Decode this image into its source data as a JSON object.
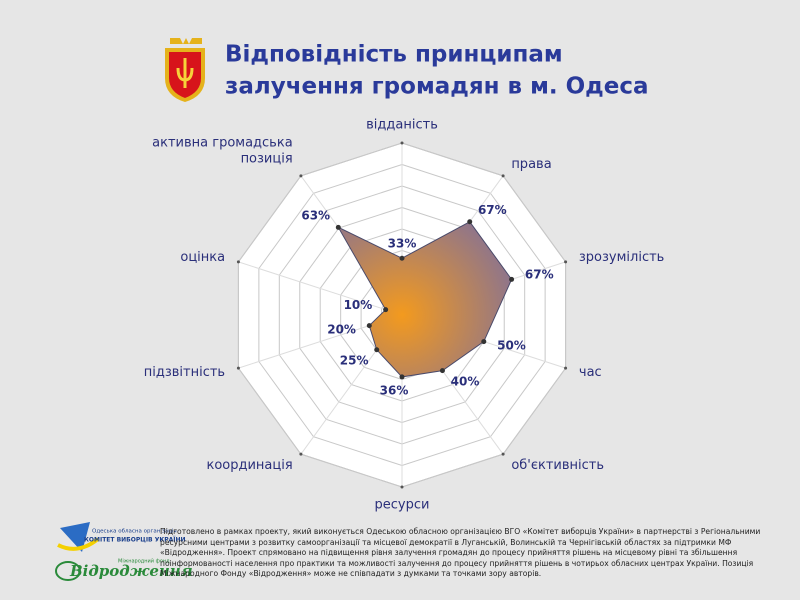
{
  "chart_data": {
    "type": "radar",
    "title": [
      "Відповідність принципам",
      "залучення громадян в м. Одеса"
    ],
    "categories": [
      "відданість",
      "права",
      "зрозумілість",
      "час",
      "об'єктивність",
      "ресурси",
      "координація",
      "підзвітність",
      "оцінка",
      "активна громадська позиція"
    ],
    "values": [
      33,
      67,
      67,
      50,
      40,
      36,
      25,
      20,
      10,
      63
    ],
    "value_labels": [
      "33%",
      "67%",
      "67%",
      "50%",
      "40%",
      "36%",
      "25%",
      "20%",
      "10%",
      "63%"
    ],
    "ylim": [
      0,
      100
    ],
    "color": "#8a7390",
    "center_color": "#f39a1e"
  },
  "footer": {
    "text": "Підготовлено в рамках проекту, який виконується Одеською обласною організацією ВГО «Комітет виборців України» в партнерстві з Регіональними ресурсними центрами з розвитку самоорганізації та місцевої демократії в Луганській, Волинській та Чернігівській областях за підтримки МФ «Відродження». Проект спрямовано на підвищення рівня залучення громадян до процесу прийняття рішень на місцевому рівні та збільшення поінформованості населення про практики та можливості залучення до процесу прийняття рішень в чотирьох обласних центрах України. Позиція Міжнародного Фонду «Відродження» може не співпадати з думками та точками зору авторів.",
    "logo1": [
      "Одеська обласна організація",
      "КОМІТЕТ ВИБОРЦІВ УКРАЇНИ"
    ],
    "logo2": [
      "Відродження",
      "Міжнародний фонд"
    ]
  }
}
